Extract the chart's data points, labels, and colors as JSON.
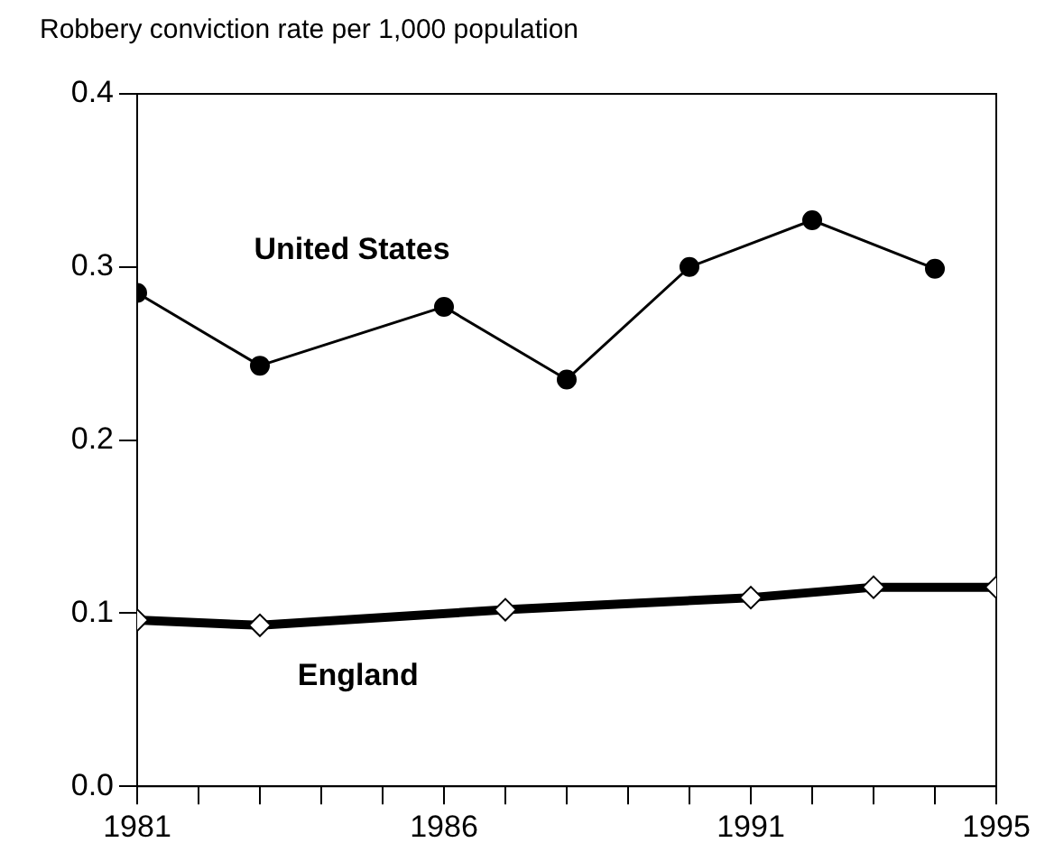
{
  "chart_data": {
    "type": "line",
    "ylabel": "Robbery conviction rate per 1,000 population",
    "xlim": [
      1981,
      1995
    ],
    "xticks": [
      1981,
      {
        "value": 1982,
        "label": null
      },
      {
        "value": 1983,
        "label": null
      },
      {
        "value": 1984,
        "label": null
      },
      {
        "value": 1985,
        "label": null
      },
      1986,
      {
        "value": 1987,
        "label": null
      },
      {
        "value": 1988,
        "label": null
      },
      {
        "value": 1989,
        "label": null
      },
      {
        "value": 1990,
        "label": null
      },
      1991,
      {
        "value": 1992,
        "label": null
      },
      {
        "value": 1993,
        "label": null
      },
      {
        "value": 1994,
        "label": null
      },
      1995
    ],
    "ylim": [
      0,
      0.4
    ],
    "yticks": [
      {
        "value": 0,
        "label": "0.0"
      },
      {
        "value": 0.1,
        "label": "0.1"
      },
      {
        "value": 0.2,
        "label": "0.2"
      },
      {
        "value": 0.3,
        "label": "0.3"
      },
      {
        "value": 0.4,
        "label": "0.4"
      }
    ],
    "grid": false,
    "legend": false,
    "series": [
      {
        "name": "United States",
        "color": "#000000",
        "marker": "circle",
        "x": [
          1981,
          1983,
          1986,
          1988,
          1990,
          1992,
          1994
        ],
        "values": [
          0.285,
          0.243,
          0.277,
          0.235,
          0.3,
          0.327,
          0.299
        ]
      },
      {
        "name": "England",
        "color": "#000000",
        "marker": "diamond",
        "x": [
          1981,
          1983,
          1987,
          1991,
          1993,
          1995
        ],
        "values": [
          0.096,
          0.093,
          0.102,
          0.109,
          0.115,
          0.115
        ]
      }
    ]
  }
}
